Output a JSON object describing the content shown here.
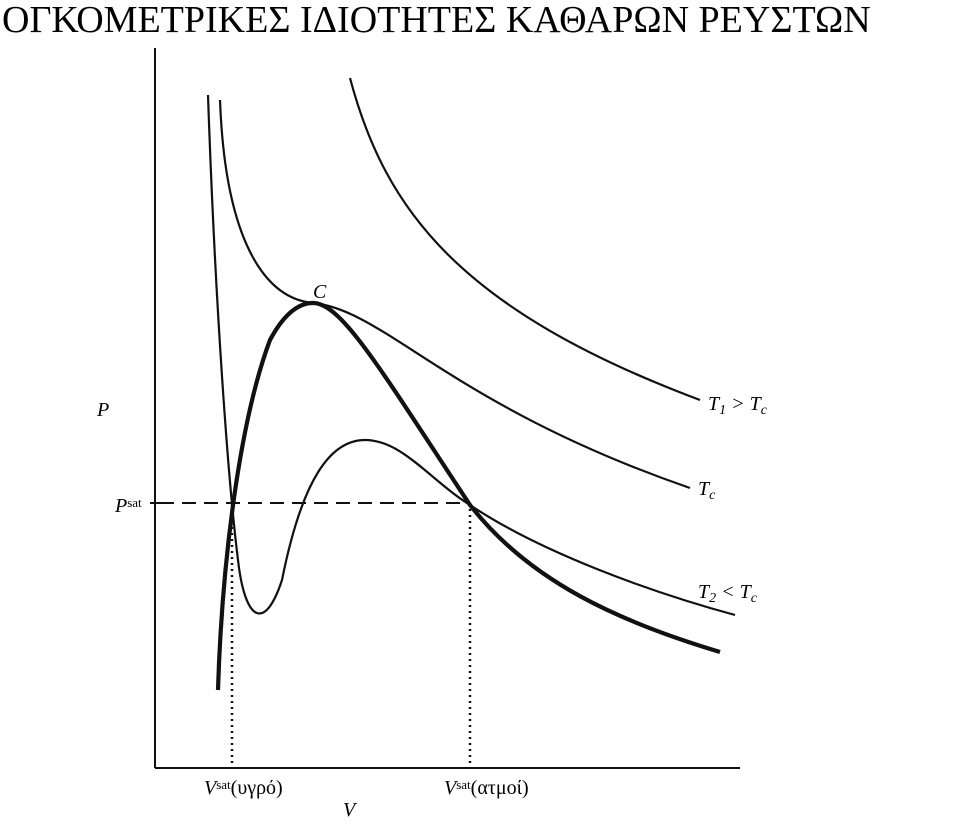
{
  "title": "ΟΓΚΟΜΕΤΡΙΚΕΣ ΙΔΙΟΤΗΤΕΣ ΚΑΘΑΡΩΝ ΡΕΥΣΤΩΝ",
  "labels": {
    "p_axis": [
      {
        "text": "P",
        "role": "base"
      }
    ],
    "p_sat": [
      {
        "text": "P",
        "role": "base"
      },
      {
        "text": "sat",
        "role": "sup"
      }
    ],
    "critical": [
      {
        "text": "C",
        "role": "base"
      }
    ],
    "t1": [
      {
        "text": "T",
        "role": "base"
      },
      {
        "text": "1",
        "role": "sub"
      },
      {
        "text": " > T",
        "role": "base"
      },
      {
        "text": "c",
        "role": "sub"
      }
    ],
    "tc": [
      {
        "text": "T",
        "role": "base"
      },
      {
        "text": "c",
        "role": "sub"
      }
    ],
    "t2": [
      {
        "text": "T",
        "role": "base"
      },
      {
        "text": "2",
        "role": "sub"
      },
      {
        "text": " < T",
        "role": "base"
      },
      {
        "text": "c",
        "role": "sub"
      }
    ],
    "v_liquid": [
      {
        "text": "V",
        "role": "base"
      },
      {
        "text": "sat",
        "role": "sup"
      },
      {
        "text": "(υγρό)",
        "role": "plain"
      }
    ],
    "v_vapor": [
      {
        "text": "V",
        "role": "base"
      },
      {
        "text": "sat",
        "role": "sup"
      },
      {
        "text": "(ατμοί)",
        "role": "plain"
      }
    ],
    "v_axis": [
      {
        "text": "V",
        "role": "base"
      }
    ]
  }
}
